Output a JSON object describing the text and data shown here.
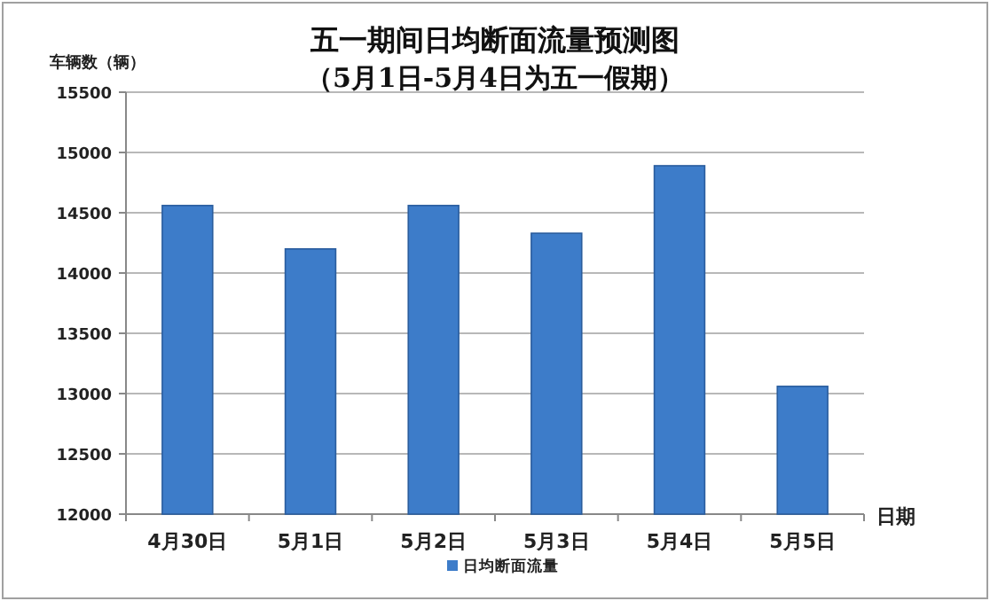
{
  "chart_data": {
    "type": "bar",
    "title": "五一期间日均断面流量预测图",
    "subtitle": "（5月1日-5月4日为五一假期）",
    "ylabel": "车辆数（辆）",
    "xlabel": "日期",
    "categories": [
      "4月30日",
      "5月1日",
      "5月2日",
      "5月3日",
      "5月4日",
      "5月5日"
    ],
    "series": [
      {
        "name": "日均断面流量",
        "color": "#3d7cc9",
        "values": [
          14560,
          14200,
          14560,
          14330,
          14890,
          13060
        ]
      }
    ],
    "ylim": [
      12000,
      15500
    ],
    "yticks": [
      12000,
      12500,
      13000,
      13500,
      14000,
      14500,
      15000,
      15500
    ],
    "grid": "y",
    "legend": "bottom"
  }
}
